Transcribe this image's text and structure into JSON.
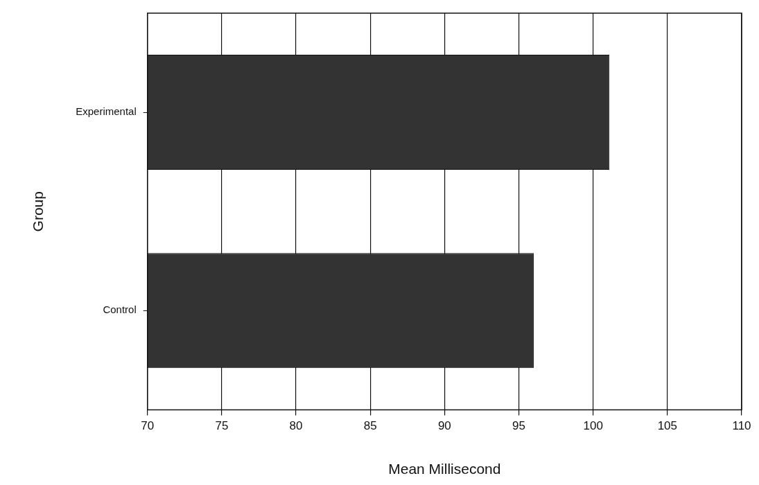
{
  "chart_data": {
    "type": "bar",
    "orientation": "horizontal",
    "categories": [
      "Experimental",
      "Control"
    ],
    "values": [
      101.1,
      96.0
    ],
    "color": "#333333",
    "xlabel": "Mean Millisecond",
    "ylabel": "Group",
    "xlim": [
      70,
      110
    ],
    "xticks": [
      70,
      75,
      80,
      85,
      90,
      95,
      100,
      105,
      110
    ],
    "grid": "x",
    "legend": false
  }
}
